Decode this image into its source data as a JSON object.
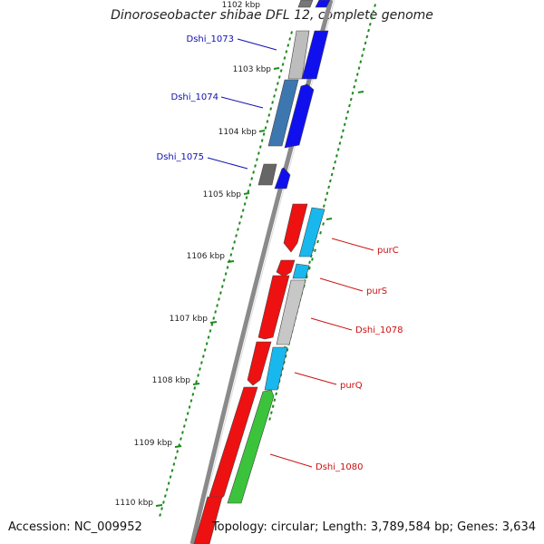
{
  "title": "Dinoroseobacter shibae DFL 12, complete genome",
  "accession": "Accession: NC_009952",
  "topology": "Topology: circular; Length: 3,789,584 bp; Genes: 3,634",
  "colors": {
    "backbone": "#8a8a8a",
    "ruler": "#1e8a1e",
    "label_blue": "#1010b0",
    "label_red": "#cc1010",
    "gene_red": "#ee1111",
    "gene_blue": "#1010ee",
    "gene_cyan": "#18b8ee",
    "gene_gray": "#bdbdbd",
    "gene_steel": "#3d77b0",
    "gene_dark": "#666666",
    "gene_green": "#3cc33c"
  },
  "ruler": {
    "inner": [
      "1102 kbp",
      "1103 kbp",
      "1104 kbp",
      "1105 kbp",
      "1106 kbp",
      "1107 kbp",
      "1108 kbp",
      "1109 kbp",
      "1110 kbp"
    ]
  },
  "genes_left": [
    {
      "label": "Dshi_1073"
    },
    {
      "label": "Dshi_1074"
    },
    {
      "label": "Dshi_1075"
    }
  ],
  "genes_right": [
    {
      "label": "purC"
    },
    {
      "label": "purS"
    },
    {
      "label": "Dshi_1078"
    },
    {
      "label": "purQ"
    },
    {
      "label": "Dshi_1080"
    }
  ]
}
